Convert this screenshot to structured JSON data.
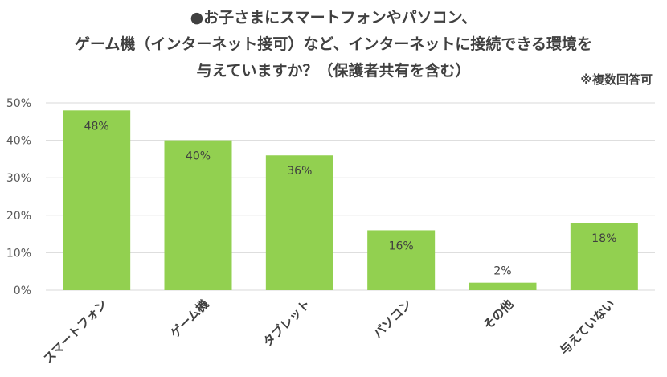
{
  "title_lines": [
    "●お子さまにスマートフォンやパソコン、",
    "ゲーム機（インターネット接可）など、インターネットに接続できる環境を",
    "与えていますか？（保護者共有を含む）"
  ],
  "note": "※複数回答可",
  "chart_data": {
    "type": "bar",
    "categories": [
      "スマートフォン",
      "ゲーム機",
      "タブレット",
      "パソコン",
      "その他",
      "与えていない"
    ],
    "values": [
      48,
      40,
      36,
      16,
      2,
      18
    ],
    "value_labels": [
      "48%",
      "40%",
      "36%",
      "16%",
      "2%",
      "18%"
    ],
    "yticks": [
      "0%",
      "10%",
      "20%",
      "30%",
      "40%",
      "50%"
    ],
    "ylim": [
      0,
      50
    ],
    "grid": true,
    "bar_color": "#92d050"
  }
}
